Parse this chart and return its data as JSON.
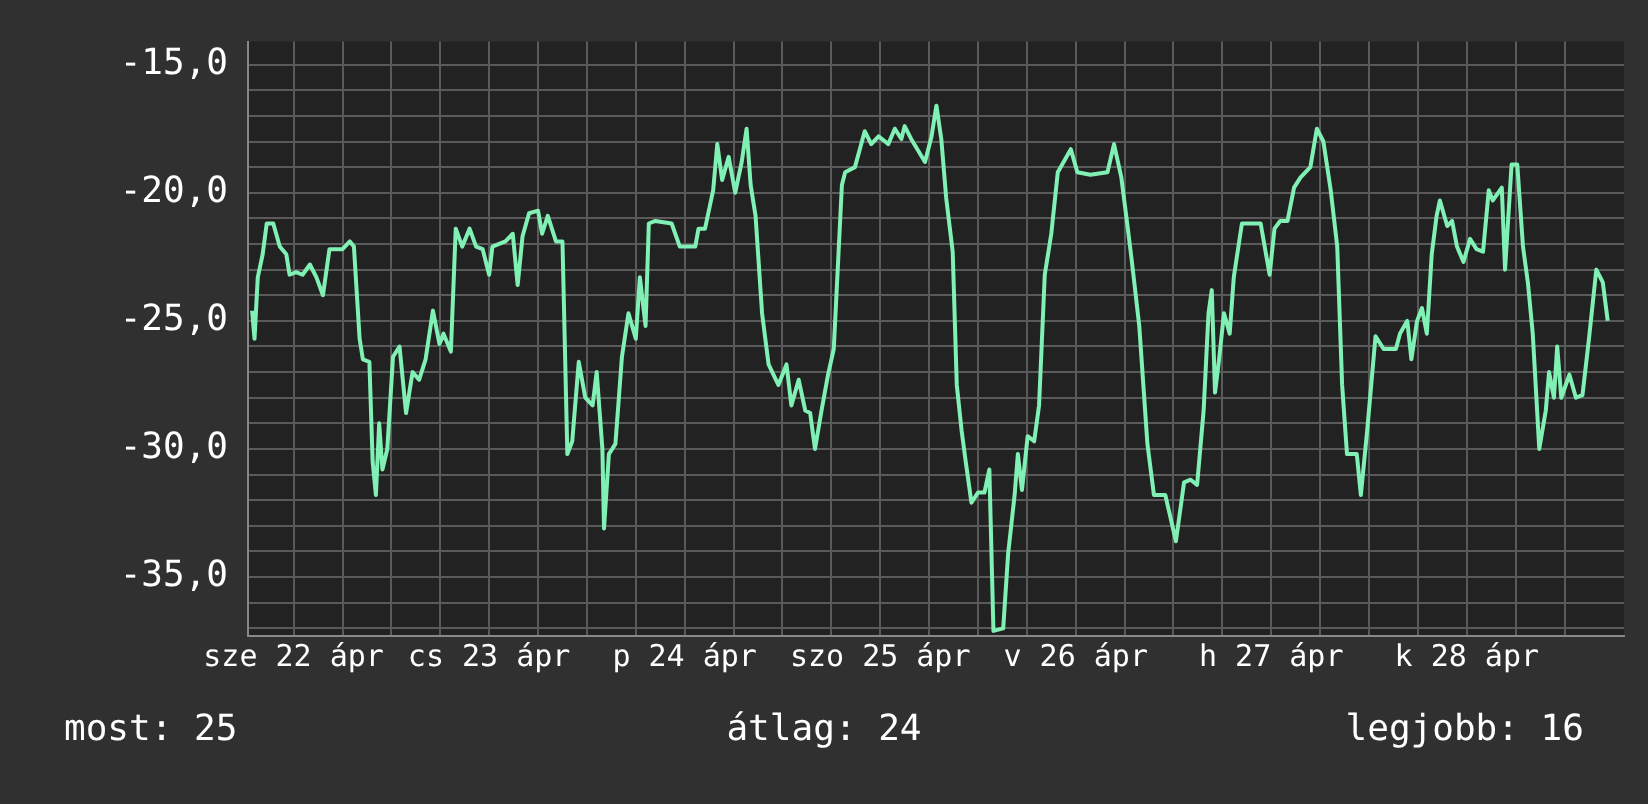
{
  "chart_data": {
    "type": "line",
    "xlim": [
      "--04-22T06:24",
      "--04-29T07:18"
    ],
    "ylim": [
      -37.3,
      -14.1
    ],
    "xticks": [
      {
        "value": "--04-22T12:00",
        "label": "sze 22 ápr"
      },
      {
        "value": "--04-22T18:00",
        "label": null
      },
      {
        "value": "--04-23T00:00",
        "label": null
      },
      {
        "value": "--04-23T06:00",
        "label": null
      },
      {
        "value": "--04-23T12:00",
        "label": "cs 23 ápr"
      },
      {
        "value": "--04-23T18:00",
        "label": null
      },
      {
        "value": "--04-24T00:00",
        "label": null
      },
      {
        "value": "--04-24T06:00",
        "label": null
      },
      {
        "value": "--04-24T12:00",
        "label": "p 24 ápr"
      },
      {
        "value": "--04-24T18:00",
        "label": null
      },
      {
        "value": "--04-25T00:00",
        "label": null
      },
      {
        "value": "--04-25T06:00",
        "label": null
      },
      {
        "value": "--04-25T12:00",
        "label": "szo 25 ápr"
      },
      {
        "value": "--04-25T18:00",
        "label": null
      },
      {
        "value": "--04-26T00:00",
        "label": null
      },
      {
        "value": "--04-26T06:00",
        "label": null
      },
      {
        "value": "--04-26T12:00",
        "label": "v 26 ápr"
      },
      {
        "value": "--04-26T18:00",
        "label": null
      },
      {
        "value": "--04-27T00:00",
        "label": null
      },
      {
        "value": "--04-27T06:00",
        "label": null
      },
      {
        "value": "--04-27T12:00",
        "label": "h 27 ápr"
      },
      {
        "value": "--04-27T18:00",
        "label": null
      },
      {
        "value": "--04-28T00:00",
        "label": null
      },
      {
        "value": "--04-28T06:00",
        "label": null
      },
      {
        "value": "--04-28T12:00",
        "label": "k 28 ápr"
      },
      {
        "value": "--04-28T18:00",
        "label": null
      },
      {
        "value": "--04-29T00:00",
        "label": null
      }
    ],
    "yticks": [
      {
        "value": -37,
        "label": null
      },
      {
        "value": -36,
        "label": null
      },
      {
        "value": -35,
        "label": "-35,0"
      },
      {
        "value": -34,
        "label": null
      },
      {
        "value": -33,
        "label": null
      },
      {
        "value": -32,
        "label": null
      },
      {
        "value": -31,
        "label": null
      },
      {
        "value": -30,
        "label": "-30,0"
      },
      {
        "value": -29,
        "label": null
      },
      {
        "value": -28,
        "label": null
      },
      {
        "value": -27,
        "label": null
      },
      {
        "value": -26,
        "label": null
      },
      {
        "value": -25,
        "label": "-25,0"
      },
      {
        "value": -24,
        "label": null
      },
      {
        "value": -23,
        "label": null
      },
      {
        "value": -22,
        "label": null
      },
      {
        "value": -21,
        "label": null
      },
      {
        "value": -20,
        "label": "-20,0"
      },
      {
        "value": -19,
        "label": null
      },
      {
        "value": -18,
        "label": null
      },
      {
        "value": -17,
        "label": null
      },
      {
        "value": -16,
        "label": null
      },
      {
        "value": -15,
        "label": "-15,0"
      }
    ],
    "grid": true,
    "legend": false,
    "marker": "none",
    "line_style": "solid",
    "annotations": [
      "most: 25",
      "átlag: 24",
      "legjobb: 16"
    ],
    "series": [
      {
        "color": "#80f0b4",
        "x": [
          "--04-22T06:54",
          "--04-22T07:12",
          "--04-22T07:36",
          "--04-22T08:12",
          "--04-22T08:42",
          "--04-22T09:30",
          "--04-22T10:18",
          "--04-22T11:06",
          "--04-22T11:30",
          "--04-22T12:18",
          "--04-22T13:06",
          "--04-22T14:00",
          "--04-22T14:48",
          "--04-22T15:36",
          "--04-22T16:24",
          "--04-22T18:00",
          "--04-22T18:54",
          "--04-22T19:24",
          "--04-22T20:06",
          "--04-22T20:30",
          "--04-22T21:18",
          "--04-22T21:42",
          "--04-22T22:06",
          "--04-22T22:30",
          "--04-22T22:54",
          "--04-22T23:30",
          "--04-23T00:12",
          "--04-23T01:00",
          "--04-23T01:48",
          "--04-23T02:36",
          "--04-23T03:24",
          "--04-23T04:12",
          "--04-23T05:06",
          "--04-23T05:54",
          "--04-23T06:24",
          "--04-23T07:18",
          "--04-23T07:54",
          "--04-23T08:42",
          "--04-23T09:36",
          "--04-23T10:24",
          "--04-23T11:12",
          "--04-23T12:00",
          "--04-23T12:24",
          "--04-23T14:00",
          "--04-23T14:54",
          "--04-23T15:30",
          "--04-23T16:06",
          "--04-23T16:54",
          "--04-23T18:00",
          "--04-23T18:30",
          "--04-23T19:12",
          "--04-23T20:12",
          "--04-23T21:00",
          "--04-23T21:36",
          "--04-23T22:12",
          "--04-23T23:00",
          "--04-23T23:48",
          "--04-24T00:42",
          "--04-24T01:12",
          "--04-24T01:54",
          "--04-24T02:06",
          "--04-24T02:42",
          "--04-24T03:30",
          "--04-24T04:18",
          "--04-24T05:06",
          "--04-24T06:00",
          "--04-24T06:30",
          "--04-24T07:12",
          "--04-24T07:36",
          "--04-24T08:24",
          "--04-24T10:24",
          "--04-24T11:24",
          "--04-24T13:18",
          "--04-24T13:42",
          "--04-24T14:30",
          "--04-24T15:30",
          "--04-24T16:00",
          "--04-24T16:36",
          "--04-24T17:24",
          "--04-24T18:12",
          "--04-24T19:00",
          "--04-24T19:36",
          "--04-24T20:06",
          "--04-24T20:42",
          "--04-24T21:30",
          "--04-24T22:18",
          "--04-24T23:30",
          "--04-25T00:30",
          "--04-25T01:06",
          "--04-25T02:00",
          "--04-25T02:48",
          "--04-25T03:24",
          "--04-25T04:00",
          "--04-25T04:48",
          "--04-25T05:36",
          "--04-25T06:18",
          "--04-25T07:18",
          "--04-25T07:42",
          "--04-25T08:54",
          "--04-25T10:06",
          "--04-25T10:54",
          "--04-25T11:48",
          "--04-25T12:36",
          "--04-25T13:00",
          "--04-25T13:48",
          "--04-25T14:36",
          "--04-25T15:00",
          "--04-25T15:48",
          "--04-25T17:30",
          "--04-25T18:18",
          "--04-25T18:54",
          "--04-25T19:30",
          "--04-25T20:06",
          "--04-25T20:54",
          "--04-25T21:24",
          "--04-25T22:00",
          "--04-25T22:30",
          "--04-25T23:12",
          "--04-26T00:00",
          "--04-26T00:48",
          "--04-26T01:24",
          "--04-26T01:54",
          "--04-26T03:06",
          "--04-26T03:42",
          "--04-26T04:30",
          "--04-26T04:54",
          "--04-26T05:24",
          "--04-26T06:06",
          "--04-26T06:54",
          "--04-26T07:30",
          "--04-26T08:12",
          "--04-26T09:00",
          "--04-26T09:48",
          "--04-26T11:24",
          "--04-26T12:12",
          "--04-26T13:48",
          "--04-26T15:54",
          "--04-26T16:42",
          "--04-26T17:36",
          "--04-26T18:24",
          "--04-26T18:54",
          "--04-26T19:48",
          "--04-26T20:48",
          "--04-26T21:36",
          "--04-26T23:00",
          "--04-27T00:18",
          "--04-27T01:18",
          "--04-27T02:06",
          "--04-27T02:54",
          "--04-27T03:42",
          "--04-27T04:18",
          "--04-27T04:42",
          "--04-27T05:06",
          "--04-27T05:36",
          "--04-27T06:12",
          "--04-27T06:54",
          "--04-27T07:24",
          "--04-27T08:24",
          "--04-27T10:42",
          "--04-27T11:48",
          "--04-27T12:24",
          "--04-27T13:06",
          "--04-27T14:00",
          "--04-27T14:48",
          "--04-27T15:36",
          "--04-27T16:48",
          "--04-27T17:36",
          "--04-27T18:24",
          "--04-27T19:18",
          "--04-27T20:06",
          "--04-27T20:42",
          "--04-27T21:18",
          "--04-27T22:30",
          "--04-27T23:00",
          "--04-27T23:48",
          "--04-28T00:48",
          "--04-28T01:48",
          "--04-28T03:18",
          "--04-28T03:48",
          "--04-28T04:42",
          "--04-28T05:12",
          "--04-28T05:54",
          "--04-28T06:30",
          "--04-28T07:06",
          "--04-28T07:42",
          "--04-28T08:18",
          "--04-28T08:42",
          "--04-28T09:36",
          "--04-28T10:12",
          "--04-28T10:48",
          "--04-28T11:36",
          "--04-28T12:24",
          "--04-28T13:12",
          "--04-28T14:00",
          "--04-28T14:42",
          "--04-28T15:12",
          "--04-28T16:18",
          "--04-28T16:42",
          "--04-28T17:30",
          "--04-28T18:12",
          "--04-28T18:54",
          "--04-28T19:30",
          "--04-28T20:06",
          "--04-28T20:54",
          "--04-28T21:42",
          "--04-28T22:06",
          "--04-28T22:42",
          "--04-28T23:06",
          "--04-28T23:36",
          "--04-29T00:36",
          "--04-29T01:24",
          "--04-29T02:12",
          "--04-29T03:00",
          "--04-29T03:54",
          "--04-29T04:42",
          "--04-29T05:18"
        ],
        "values": [
          -24.6,
          -25.7,
          -23.3,
          -22.4,
          -21.2,
          -21.2,
          -22.1,
          -22.4,
          -23.2,
          -23.1,
          -23.2,
          -22.8,
          -23.3,
          -24.0,
          -22.2,
          -22.2,
          -21.9,
          -22.1,
          -25.7,
          -26.5,
          -26.6,
          -30.5,
          -31.8,
          -29.0,
          -30.8,
          -30.0,
          -26.4,
          -26.0,
          -28.6,
          -27.0,
          -27.3,
          -26.5,
          -24.6,
          -25.9,
          -25.5,
          -26.2,
          -21.4,
          -22.1,
          -21.4,
          -22.1,
          -22.2,
          -23.2,
          -22.1,
          -21.9,
          -21.6,
          -23.6,
          -21.7,
          -20.8,
          -20.7,
          -21.6,
          -20.9,
          -21.9,
          -21.9,
          -30.2,
          -29.7,
          -26.6,
          -28.0,
          -28.3,
          -27.0,
          -30.0,
          -33.1,
          -30.2,
          -29.8,
          -26.4,
          -24.7,
          -25.7,
          -23.3,
          -25.2,
          -21.2,
          -21.1,
          -21.2,
          -22.1,
          -22.1,
          -21.4,
          -21.4,
          -19.9,
          -18.1,
          -19.5,
          -18.6,
          -20.0,
          -18.8,
          -17.5,
          -19.7,
          -20.9,
          -24.7,
          -26.7,
          -27.5,
          -26.7,
          -28.3,
          -27.3,
          -28.5,
          -28.6,
          -30.0,
          -28.5,
          -27.1,
          -26.1,
          -19.7,
          -19.2,
          -19.0,
          -17.6,
          -18.1,
          -17.8,
          -18.0,
          -18.1,
          -17.5,
          -17.9,
          -17.4,
          -17.9,
          -18.8,
          -17.8,
          -16.6,
          -17.9,
          -20.2,
          -22.3,
          -27.5,
          -29.3,
          -30.5,
          -32.1,
          -31.7,
          -31.7,
          -30.8,
          -37.1,
          -37.0,
          -34.1,
          -31.8,
          -30.2,
          -31.6,
          -29.5,
          -29.7,
          -28.3,
          -23.2,
          -21.6,
          -19.2,
          -18.3,
          -19.2,
          -19.3,
          -19.2,
          -18.1,
          -19.4,
          -21.4,
          -22.7,
          -25.2,
          -29.8,
          -31.8,
          -31.8,
          -33.6,
          -31.3,
          -31.2,
          -31.4,
          -28.5,
          -24.7,
          -23.8,
          -27.8,
          -26.5,
          -24.7,
          -25.5,
          -23.3,
          -21.2,
          -21.2,
          -23.2,
          -21.4,
          -21.1,
          -21.1,
          -19.8,
          -19.4,
          -19.0,
          -17.5,
          -18.0,
          -19.9,
          -22.1,
          -27.5,
          -30.2,
          -30.2,
          -31.8,
          -29.2,
          -25.6,
          -26.1,
          -26.1,
          -25.5,
          -25.0,
          -26.5,
          -25.0,
          -24.5,
          -25.5,
          -22.4,
          -20.9,
          -20.3,
          -21.3,
          -21.1,
          -22.1,
          -22.7,
          -21.8,
          -22.2,
          -22.3,
          -19.9,
          -20.3,
          -19.8,
          -23.0,
          -18.9,
          -18.9,
          -22.1,
          -23.5,
          -25.5,
          -30.0,
          -28.5,
          -27.0,
          -28.0,
          -26.0,
          -28.0,
          -27.1,
          -28.0,
          -27.9,
          -25.7,
          -23.0,
          -23.5,
          -25.0
        ]
      }
    ]
  }
}
